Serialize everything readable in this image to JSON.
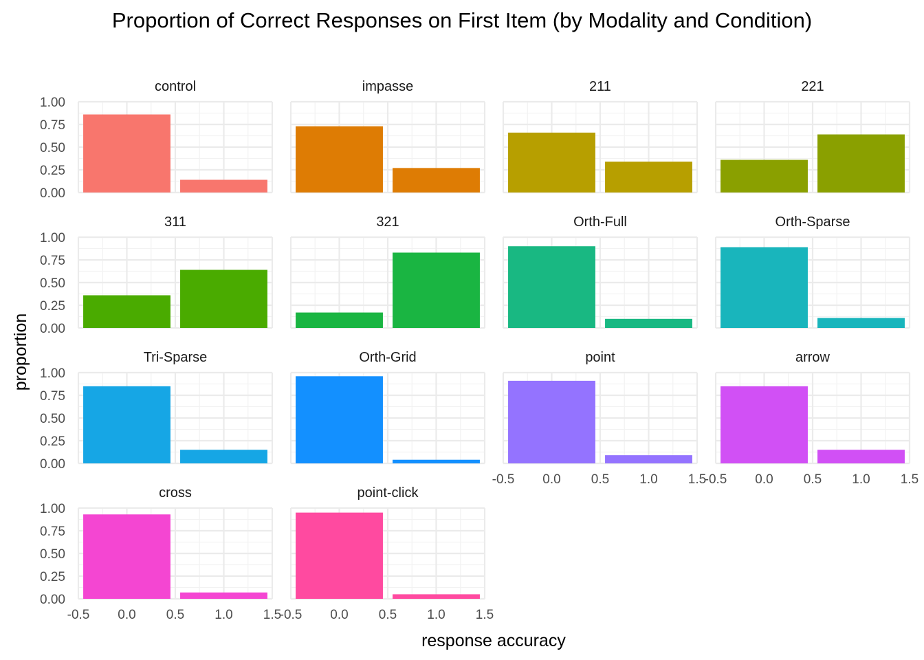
{
  "chart_data": {
    "type": "bar",
    "title": "Proportion of Correct Responses on First Item (by Modality and Condition)",
    "xlabel": "response accuracy",
    "ylabel": "proportion",
    "xlim": [
      -0.5,
      1.5
    ],
    "ylim": [
      0,
      1
    ],
    "x": [
      0,
      1
    ],
    "x_ticks": [
      "-0.5",
      "0.0",
      "0.5",
      "1.0",
      "1.5"
    ],
    "y_ticks": [
      "0.00",
      "0.25",
      "0.50",
      "0.75",
      "1.00"
    ],
    "grid": true,
    "facets": [
      {
        "name": "control",
        "values": [
          0.86,
          0.14
        ],
        "color": "#F8766D"
      },
      {
        "name": "impasse",
        "values": [
          0.73,
          0.27
        ],
        "color": "#DE7C04"
      },
      {
        "name": "211",
        "values": [
          0.66,
          0.34
        ],
        "color": "#B79F00"
      },
      {
        "name": "221",
        "values": [
          0.36,
          0.64
        ],
        "color": "#8AA000"
      },
      {
        "name": "311",
        "values": [
          0.36,
          0.64
        ],
        "color": "#4AAB00"
      },
      {
        "name": "321",
        "values": [
          0.17,
          0.83
        ],
        "color": "#1AB542"
      },
      {
        "name": "Orth-Full",
        "values": [
          0.9,
          0.1
        ],
        "color": "#19B882"
      },
      {
        "name": "Orth-Sparse",
        "values": [
          0.89,
          0.11
        ],
        "color": "#19B5BC"
      },
      {
        "name": "Tri-Sparse",
        "values": [
          0.85,
          0.15
        ],
        "color": "#16A6E5"
      },
      {
        "name": "Orth-Grid",
        "values": [
          0.96,
          0.04
        ],
        "color": "#1390FF"
      },
      {
        "name": "point",
        "values": [
          0.91,
          0.09
        ],
        "color": "#9473FF"
      },
      {
        "name": "arrow",
        "values": [
          0.85,
          0.15
        ],
        "color": "#D150F5"
      },
      {
        "name": "cross",
        "values": [
          0.93,
          0.07
        ],
        "color": "#F446D2"
      },
      {
        "name": "point-click",
        "values": [
          0.95,
          0.05
        ],
        "color": "#FF4AA0"
      }
    ]
  }
}
